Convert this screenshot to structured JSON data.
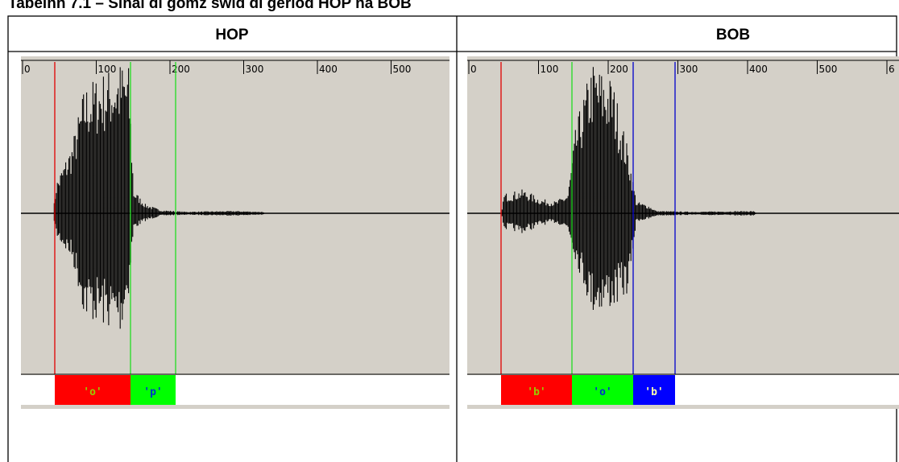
{
  "caption": "Tabelnn 7.1 – Sinal di gomz swid di gerlod HOP na BOB",
  "table": {
    "headers": [
      "HOP",
      "BOB"
    ],
    "panels": [
      {
        "ruler": [
          "0",
          "100",
          "200",
          "300",
          "400",
          "500"
        ],
        "segments": [
          "'o'",
          "'p'"
        ]
      },
      {
        "ruler": [
          "0",
          "100",
          "200",
          "300",
          "400",
          "500",
          "6"
        ],
        "segments": [
          "'b'",
          "'o'",
          "'b'"
        ]
      }
    ]
  }
}
